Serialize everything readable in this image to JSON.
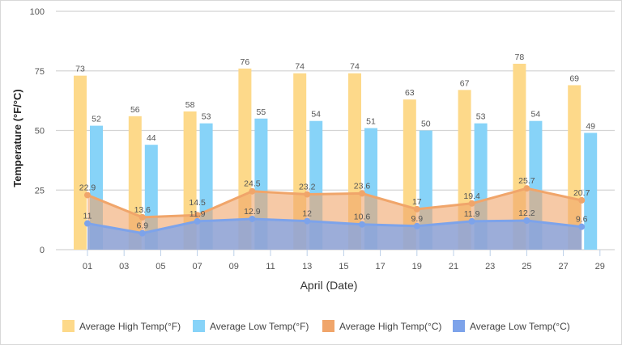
{
  "chart_data": {
    "type": "bar+area",
    "xlabel": "April (Date)",
    "ylabel": "Temperature (°F/°C)",
    "ylim": [
      0,
      100
    ],
    "yticks": [
      0,
      25,
      50,
      75,
      100
    ],
    "xticks": [
      "01",
      "03",
      "05",
      "07",
      "09",
      "11",
      "13",
      "15",
      "17",
      "19",
      "21",
      "23",
      "25",
      "27",
      "29"
    ],
    "x": [
      1,
      4,
      7,
      10,
      13,
      16,
      19,
      22,
      25,
      28
    ],
    "grid": true,
    "legend_position": "bottom",
    "series": [
      {
        "name": "Average High Temp(°F)",
        "kind": "bar",
        "color": "#FDD98A",
        "values": [
          73,
          56,
          58,
          76,
          74,
          74,
          63,
          67,
          78,
          69
        ]
      },
      {
        "name": "Average Low Temp(°F)",
        "kind": "bar",
        "color": "#87D3F8",
        "values": [
          52,
          44,
          53,
          55,
          54,
          51,
          50,
          53,
          54,
          49
        ]
      },
      {
        "name": "Average High Temp(°C)",
        "kind": "area",
        "color": "#F0A56A",
        "values": [
          22.9,
          13.6,
          14.5,
          24.5,
          23.2,
          23.6,
          17,
          19.4,
          25.7,
          20.7
        ]
      },
      {
        "name": "Average Low Temp(°C)",
        "kind": "area",
        "color": "#7DA3EA",
        "values": [
          11,
          6.9,
          11.9,
          12.9,
          12,
          10.6,
          9.9,
          11.9,
          12.2,
          9.6
        ]
      }
    ]
  }
}
